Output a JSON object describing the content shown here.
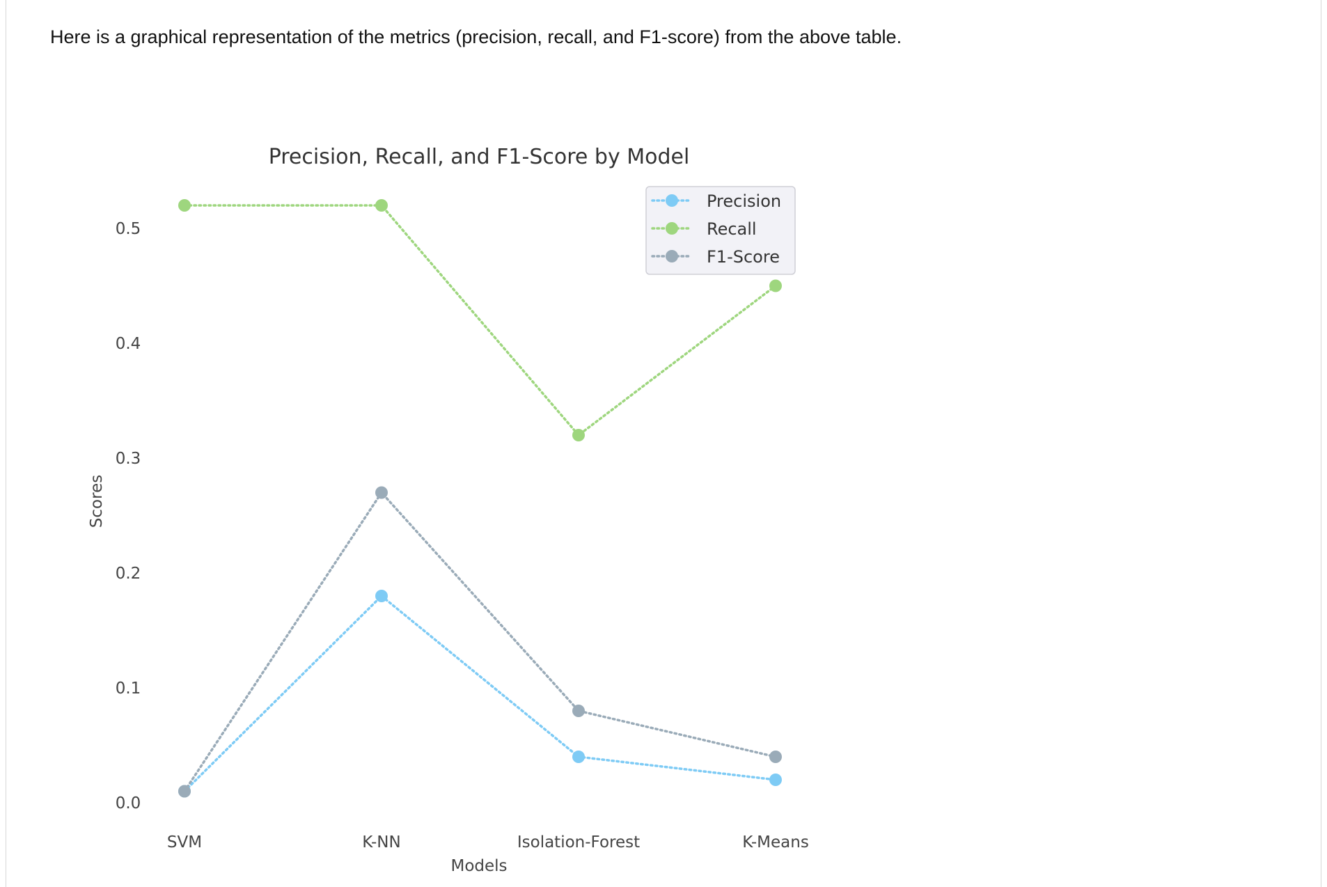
{
  "intro_text": "Here is a graphical representation of the metrics (precision, recall, and F1-score) from the above table.",
  "chart_data": {
    "type": "line",
    "title": "Precision, Recall, and F1-Score by Model",
    "xlabel": "Models",
    "ylabel": "Scores",
    "categories": [
      "SVM",
      "K-NN",
      "Isolation-Forest",
      "K-Means"
    ],
    "ylim": [
      0.0,
      0.52
    ],
    "yticks": [
      0.0,
      0.1,
      0.2,
      0.3,
      0.4,
      0.5
    ],
    "grid": false,
    "legend_position": "top-right",
    "line_style": "dotted",
    "series": [
      {
        "name": "Precision",
        "color": "#7ecbf5",
        "values": [
          0.01,
          0.18,
          0.04,
          0.02
        ]
      },
      {
        "name": "Recall",
        "color": "#9ed67e",
        "values": [
          0.52,
          0.52,
          0.32,
          0.45
        ]
      },
      {
        "name": "F1-Score",
        "color": "#9aabb8",
        "values": [
          0.01,
          0.27,
          0.08,
          0.04
        ]
      }
    ]
  }
}
